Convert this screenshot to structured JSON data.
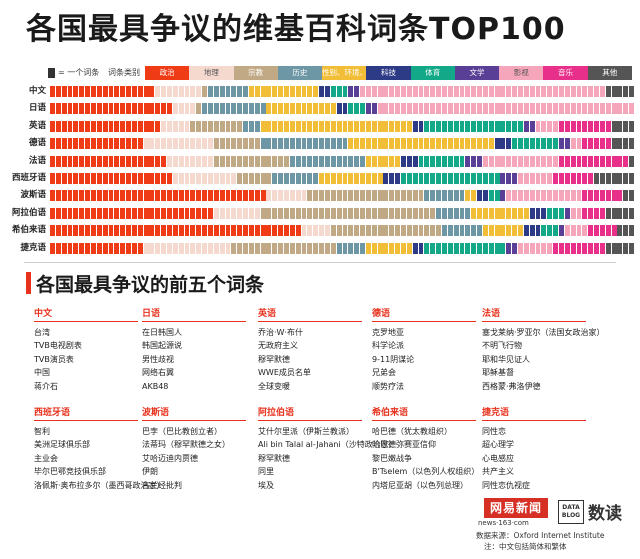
{
  "title": "各国最具争议的维基百科词条TOP100",
  "legend": {
    "key_text": "= 一个词条",
    "category_title": "词条类别",
    "categories": [
      {
        "id": "politics",
        "label": "政治",
        "color": "#ef3b16"
      },
      {
        "id": "region",
        "label": "地理",
        "color": "#f5d9cf"
      },
      {
        "id": "religion",
        "label": "宗教",
        "color": "#c2a986"
      },
      {
        "id": "history",
        "label": "历史",
        "color": "#6e97a6"
      },
      {
        "id": "society",
        "label": "性别、环境、人权",
        "color": "#f2bd37"
      },
      {
        "id": "tech",
        "label": "科技",
        "color": "#2d3a86"
      },
      {
        "id": "sports",
        "label": "体育",
        "color": "#13a887"
      },
      {
        "id": "culture",
        "label": "文学",
        "color": "#5a3f96"
      },
      {
        "id": "film",
        "label": "影视",
        "color": "#f5a6ba"
      },
      {
        "id": "music",
        "label": "音乐",
        "color": "#e8308a"
      },
      {
        "id": "other",
        "label": "其他",
        "color": "#555555"
      }
    ]
  },
  "chart_data": {
    "type": "waffle",
    "title": "各国最具争议的维基百科词条TOP100",
    "unit": "= 一个词条",
    "cells_per_row": 100,
    "category_order": [
      "politics",
      "region",
      "religion",
      "history",
      "society",
      "tech",
      "sports",
      "culture",
      "film",
      "music",
      "other"
    ],
    "rows": [
      {
        "label": "中文",
        "counts": {
          "politics": 18,
          "region": 8,
          "religion": 1,
          "history": 7,
          "society": 12,
          "tech": 2,
          "sports": 3,
          "culture": 2,
          "film": 42,
          "music": 0,
          "other": 5
        }
      },
      {
        "label": "日语",
        "counts": {
          "politics": 21,
          "region": 4,
          "religion": 1,
          "history": 11,
          "society": 12,
          "tech": 2,
          "sports": 3,
          "culture": 2,
          "film": 44,
          "music": 0,
          "other": 0
        }
      },
      {
        "label": "英语",
        "counts": {
          "politics": 19,
          "region": 5,
          "religion": 9,
          "history": 3,
          "society": 26,
          "tech": 2,
          "sports": 17,
          "culture": 2,
          "film": 4,
          "music": 9,
          "other": 4
        }
      },
      {
        "label": "德语",
        "counts": {
          "politics": 16,
          "region": 12,
          "religion": 8,
          "history": 15,
          "society": 25,
          "tech": 3,
          "sports": 8,
          "culture": 2,
          "film": 2,
          "music": 5,
          "other": 4
        }
      },
      {
        "label": "法语",
        "counts": {
          "politics": 20,
          "region": 8,
          "religion": 13,
          "history": 13,
          "society": 6,
          "tech": 3,
          "sports": 8,
          "culture": 3,
          "film": 13,
          "music": 12,
          "other": 1
        }
      },
      {
        "label": "西班牙语",
        "counts": {
          "politics": 21,
          "region": 11,
          "religion": 6,
          "history": 8,
          "society": 11,
          "tech": 3,
          "sports": 17,
          "culture": 3,
          "film": 6,
          "music": 7,
          "other": 7
        }
      },
      {
        "label": "波斯语",
        "counts": {
          "politics": 37,
          "region": 7,
          "religion": 20,
          "history": 7,
          "society": 2,
          "tech": 2,
          "sports": 2,
          "culture": 1,
          "film": 13,
          "music": 7,
          "other": 2
        }
      },
      {
        "label": "阿拉伯语",
        "counts": {
          "politics": 28,
          "region": 8,
          "religion": 30,
          "history": 6,
          "society": 10,
          "tech": 3,
          "sports": 3,
          "culture": 1,
          "film": 2,
          "music": 4,
          "other": 5
        }
      },
      {
        "label": "希伯来语",
        "counts": {
          "politics": 43,
          "region": 5,
          "religion": 19,
          "history": 7,
          "society": 7,
          "tech": 3,
          "sports": 3,
          "culture": 1,
          "film": 4,
          "music": 5,
          "other": 3
        }
      },
      {
        "label": "捷克语",
        "counts": {
          "politics": 16,
          "region": 15,
          "religion": 18,
          "history": 5,
          "society": 8,
          "tech": 2,
          "sports": 14,
          "culture": 2,
          "film": 6,
          "music": 9,
          "other": 5
        }
      }
    ]
  },
  "top5": {
    "title": "各国最具争议的前五个词条",
    "groups": [
      {
        "lang": "中文",
        "items": [
          "台湾",
          "TVB电视剧表",
          "TVB演员表",
          "中国",
          "蒋介石"
        ]
      },
      {
        "lang": "日语",
        "items": [
          "在日韩国人",
          "韩国起源说",
          "男性歧视",
          "网络右翼",
          "AKB48"
        ]
      },
      {
        "lang": "英语",
        "items": [
          "乔治·W·布什",
          "无政府主义",
          "穆罕默德",
          "WWE成员名单",
          "全球变暖"
        ]
      },
      {
        "lang": "德语",
        "items": [
          "克罗地亚",
          "科学论派",
          "9-11阴谋论",
          "兄弟会",
          "顺势疗法"
        ]
      },
      {
        "lang": "法语",
        "items": [
          "塞戈莱纳·罗亚尔（法国女政治家）",
          "不明飞行物",
          "耶和华见证人",
          "耶稣基督",
          "西格蒙·弗洛伊德"
        ]
      },
      {
        "lang": "西班牙语",
        "items": [
          "智利",
          "美洲足球俱乐部",
          "主业会",
          "毕尔巴鄂竞技俱乐部",
          "洛佩斯·奥布拉多尔（墨西哥政治家）"
        ]
      },
      {
        "lang": "波斯语",
        "items": [
          "巴孛（巴比教创立者）",
          "法蒂玛（穆罕默德之女）",
          "艾哈迈迪内贾德",
          "伊朗",
          "古兰经批判"
        ]
      },
      {
        "lang": "阿拉伯语",
        "items": [
          "艾什尔里派（伊斯兰教派）",
          "Ali bin Talal al-Jahani（沙特政治家）",
          "穆罕默德",
          "同里",
          "埃及"
        ]
      },
      {
        "lang": "希伯来语",
        "items": [
          "哈巴德（犹太教组织）",
          "哈巴德弥赛亚信仰",
          "黎巴嫩战争",
          "B'Tselem（以色列人权组织）",
          "内塔尼亚胡（以色列总理）"
        ]
      },
      {
        "lang": "捷克语",
        "items": [
          "同性恋",
          "超心理学",
          "心电感应",
          "共产主义",
          "同性恋仇视症"
        ]
      }
    ]
  },
  "branding": {
    "netease_logo": "网易新闻",
    "netease_url": "news·163·com",
    "datablog_logo": "DATA BLOG",
    "shudu_logo": "数读"
  },
  "source": "数据来源：Oxford Internet Institute",
  "note": "注：中文包括简体和繁体"
}
